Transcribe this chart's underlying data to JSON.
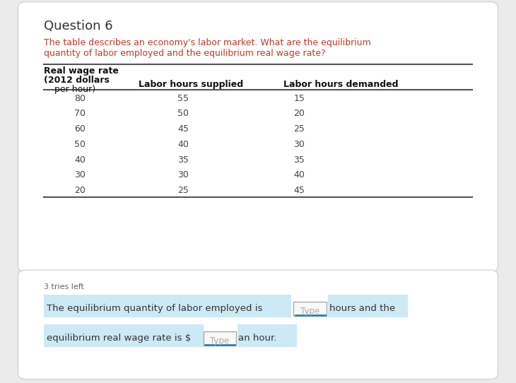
{
  "title": "Question 6",
  "question_text_line1": "The table describes an economy's labor market. What are the equilibrium",
  "question_text_line2": "quantity of labor employed and the equilibrium real wage rate?",
  "col_header_2": "Labor hours supplied",
  "col_header_3": "Labor hours demanded",
  "table_data": [
    [
      80,
      55,
      15
    ],
    [
      70,
      50,
      20
    ],
    [
      60,
      45,
      25
    ],
    [
      50,
      40,
      30
    ],
    [
      40,
      35,
      35
    ],
    [
      30,
      30,
      40
    ],
    [
      20,
      25,
      45
    ]
  ],
  "tries_text": "3 tries left",
  "bottom_text_1": "The equilibrium quantity of labor employed is",
  "input1_label": "Type",
  "bottom_text_2": "hours and the",
  "bottom_text_3": "equilibrium real wage rate is $",
  "input2_label": "Type",
  "bottom_text_4": "an hour.",
  "bg_color": "#ebebeb",
  "card_color": "#ffffff",
  "title_color": "#333333",
  "question_color": "#c0392b",
  "table_text_color": "#444444",
  "header_bold_color": "#111111",
  "tries_color": "#666666",
  "bottom_text_color": "#333333",
  "highlight_color": "#cce9f5",
  "input_bg_color": "#f8f8f8",
  "input_border_color": "#2980b9",
  "card_border_color": "#cccccc"
}
